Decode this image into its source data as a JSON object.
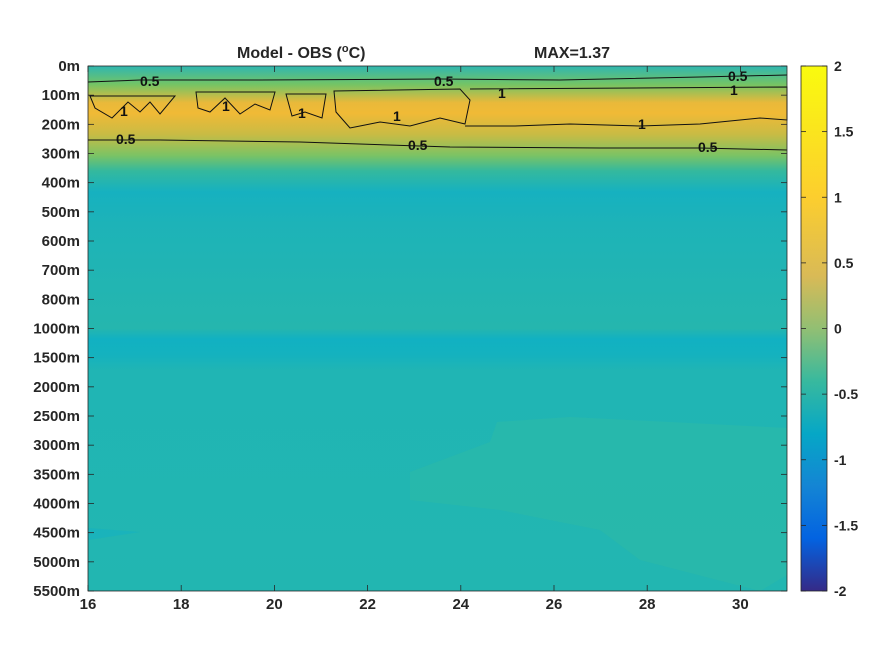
{
  "chart_data": {
    "type": "heatmap",
    "title": "Model - OBS (",
    "title_unit_sup": "o",
    "title_unit_tail": "C)",
    "title_max": "MAX=1.37",
    "x_ticks": [
      "16",
      "18",
      "20",
      "22",
      "24",
      "26",
      "28",
      "30"
    ],
    "x_tick_values": [
      16,
      18,
      20,
      22,
      24,
      26,
      28,
      30
    ],
    "xlim": [
      16,
      31
    ],
    "y_ticks": [
      "0m",
      "100m",
      "200m",
      "300m",
      "400m",
      "500m",
      "600m",
      "700m",
      "800m",
      "1000m",
      "1500m",
      "2000m",
      "2500m",
      "3000m",
      "3500m",
      "4000m",
      "4500m",
      "5000m",
      "5500m"
    ],
    "colorbar": {
      "ticks": [
        "2",
        "1.5",
        "1",
        "0.5",
        "0",
        "-0.5",
        "-1",
        "-1.5",
        "-2"
      ],
      "tick_values": [
        2,
        1.5,
        1,
        0.5,
        0,
        -0.5,
        -1,
        -1.5,
        -2
      ],
      "clim": [
        -2,
        2
      ],
      "colormap": "parula"
    },
    "depth_profile": {
      "levels": [
        "0m",
        "100m",
        "200m",
        "300m",
        "400m",
        "500m",
        "600m",
        "700m",
        "800m",
        "1000m",
        "1500m",
        "2000m",
        "2500m",
        "3000m",
        "3500m",
        "4000m",
        "4500m",
        "5000m",
        "5500m"
      ],
      "values": [
        0.2,
        1.2,
        1.0,
        0.45,
        0.05,
        0.05,
        0.1,
        0.15,
        0.15,
        0.0,
        0.1,
        0.2,
        0.2,
        0.2,
        0.2,
        0.2,
        0.2,
        0.2,
        0.2
      ]
    },
    "contour_labels": [
      "0.5",
      "0.5",
      "0.5",
      "1",
      "1",
      "1",
      "1",
      "1",
      "1",
      "1",
      "0.5",
      "0.5",
      "0.5"
    ],
    "contour_levels": [
      0.5,
      1
    ]
  }
}
